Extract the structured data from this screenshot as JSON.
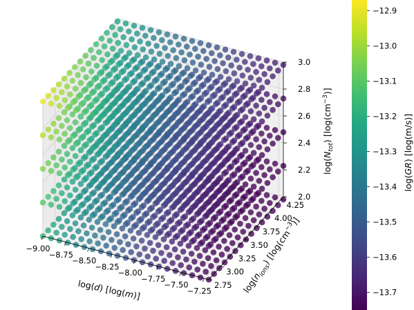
{
  "chart_data": {
    "type": "scatter",
    "projection": "3d",
    "x_axis": {
      "label": "log(d) [log(m)]",
      "ticks": [
        "-9.00",
        "-8.75",
        "-8.50",
        "-8.25",
        "-8.00",
        "-7.75",
        "-7.50",
        "-7.25"
      ],
      "range": [
        -9.0,
        -7.2
      ]
    },
    "y_axis": {
      "label": "log(n_ions) [log(cm^-3)]",
      "ticks": [
        "2.75",
        "3.00",
        "3.25",
        "3.50",
        "3.75",
        "4.00",
        "4.25"
      ],
      "range": [
        2.75,
        4.3
      ]
    },
    "z_axis": {
      "label": "log(N_tot) [log(cm^-3)]",
      "ticks": [
        "2.0",
        "2.2",
        "2.4",
        "2.6",
        "2.8",
        "3.0"
      ],
      "range": [
        2.0,
        3.0
      ]
    },
    "colorbar": {
      "label": "log(GR) [log(m/s)]",
      "ticks": [
        "-12.9",
        "-13.0",
        "-13.1",
        "-13.2",
        "-13.3",
        "-13.4",
        "-13.5",
        "-13.6",
        "-13.7"
      ],
      "range": [
        -13.75,
        -12.87
      ],
      "colormap": "viridis"
    },
    "z_levels": [
      2.0,
      2.25,
      2.5,
      2.75,
      3.0
    ],
    "grid": true,
    "legend": "none"
  }
}
